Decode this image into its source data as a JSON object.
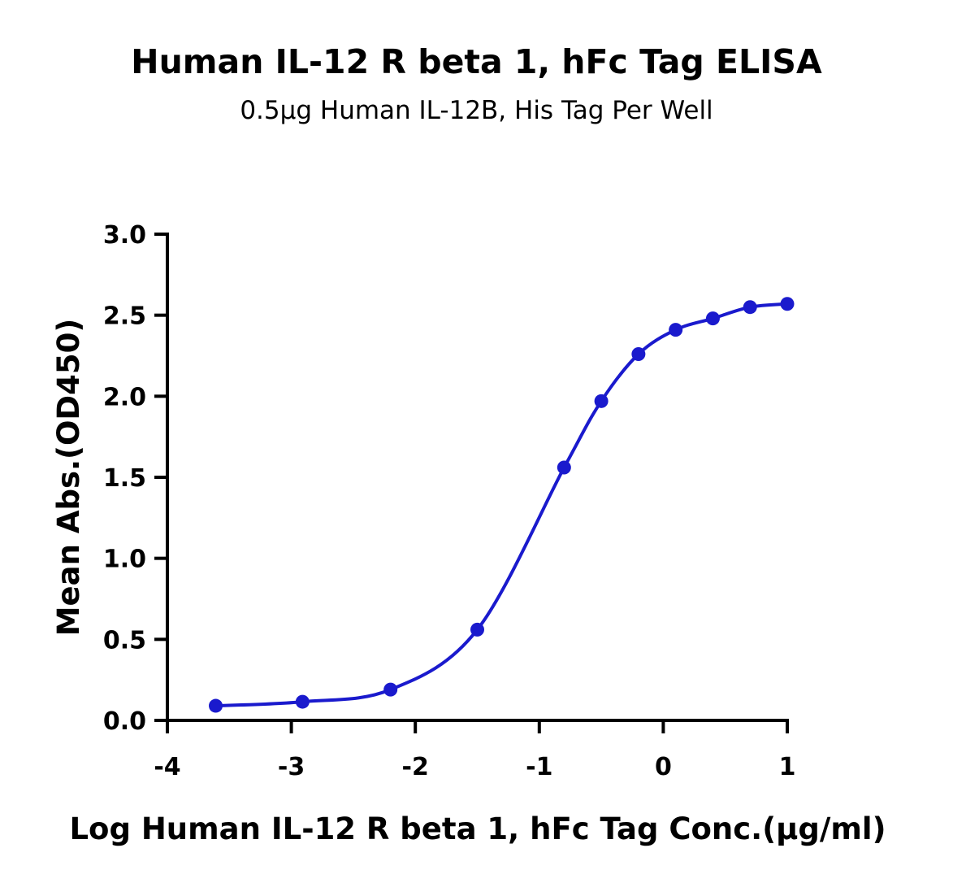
{
  "chart_data": {
    "type": "line",
    "title": "Human IL-12 R beta 1, hFc Tag ELISA",
    "subtitle": "0.5μg Human IL-12B, His Tag Per Well",
    "xlabel": "Log Human IL-12 R beta 1, hFc Tag Conc.(μg/ml)",
    "ylabel": "Mean Abs.(OD450)",
    "xlim": [
      -4,
      1
    ],
    "ylim": [
      0,
      3.0
    ],
    "xticks": [
      -4,
      -3,
      -2,
      -1,
      0,
      1
    ],
    "xtick_labels": [
      "-4",
      "-3",
      "-2",
      "-1",
      "0",
      "1"
    ],
    "yticks": [
      0,
      0.5,
      1.0,
      1.5,
      2.0,
      2.5,
      3.0
    ],
    "ytick_labels": [
      "0.0",
      "0.5",
      "1.0",
      "1.5",
      "2.0",
      "2.5",
      "3.0"
    ],
    "grid": false,
    "color": "#1a1acd",
    "series": [
      {
        "x": [
          -3.61,
          -2.91,
          -2.2,
          -1.5,
          -0.8,
          -0.5,
          -0.2,
          0.1,
          0.4,
          0.7,
          1.0
        ],
        "y": [
          0.09,
          0.115,
          0.19,
          0.56,
          1.56,
          1.97,
          2.26,
          2.41,
          2.48,
          2.55,
          2.57
        ]
      }
    ]
  }
}
